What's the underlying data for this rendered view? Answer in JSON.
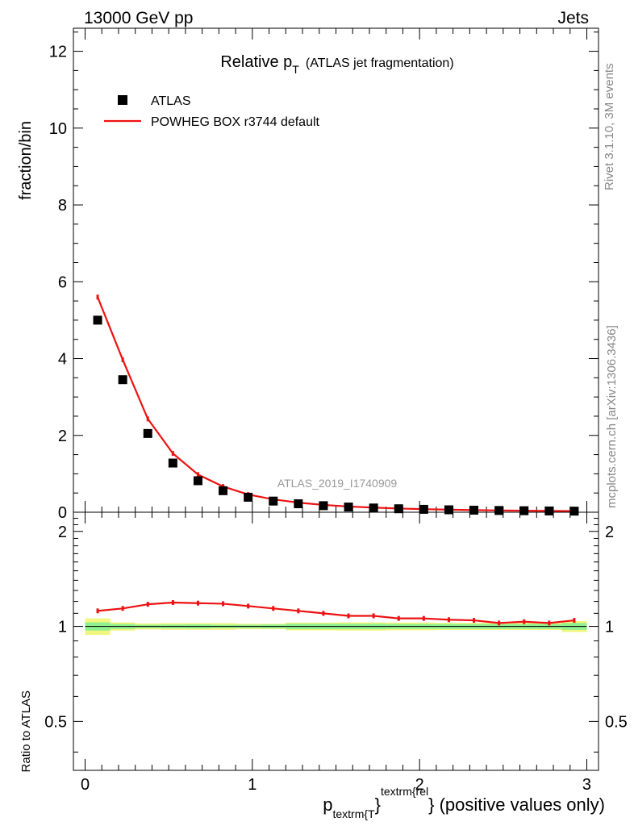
{
  "header": {
    "left": "13000 GeV pp",
    "right": "Jets"
  },
  "title": {
    "main": "Relative p",
    "sub": "T",
    "paren": "(ATLAS jet fragmentation)"
  },
  "side_labels": {
    "rivet": "Rivet 3.1.10,  3M events",
    "mcplots": "mcplots.cern.ch [arXiv:1306.3436]"
  },
  "watermark": "ATLAS_2019_I1740909",
  "legend": {
    "data_label": "ATLAS",
    "mc_label": "POWHEG BOX r3744 default"
  },
  "colors": {
    "mc": "#ee1111",
    "data": "#000000",
    "band_outer": "#f2f57e",
    "band_inner": "#8ff08f"
  },
  "xaxis": {
    "label_p": "p",
    "label_sub": "textrm{T",
    "label_sup": "textrm{rel",
    "label_brace1": "}",
    "label_brace2": "}",
    "label_rest": " (positive values only)"
  },
  "chart_data": [
    {
      "type": "scatter",
      "panel": "main",
      "ylabel": "fraction/bin",
      "xlim": [
        -0.07,
        3.07
      ],
      "ylim": [
        0,
        12.6
      ],
      "yticks": [
        0,
        2,
        4,
        6,
        8,
        10,
        12
      ],
      "ytick_labels": [
        "0",
        "2",
        "4",
        "6",
        "8",
        "10",
        "12"
      ],
      "series": [
        {
          "name": "ATLAS",
          "style": "markers",
          "x": [
            0.075,
            0.225,
            0.375,
            0.525,
            0.675,
            0.825,
            0.975,
            1.125,
            1.275,
            1.425,
            1.575,
            1.725,
            1.875,
            2.025,
            2.175,
            2.325,
            2.475,
            2.625,
            2.775,
            2.925
          ],
          "y": [
            5.0,
            3.45,
            2.05,
            1.28,
            0.82,
            0.56,
            0.39,
            0.29,
            0.22,
            0.17,
            0.135,
            0.11,
            0.09,
            0.075,
            0.063,
            0.053,
            0.045,
            0.039,
            0.033,
            0.028
          ]
        },
        {
          "name": "POWHEG BOX r3744 default",
          "style": "line",
          "x": [
            0.075,
            0.225,
            0.375,
            0.525,
            0.675,
            0.825,
            0.975,
            1.125,
            1.275,
            1.425,
            1.575,
            1.725,
            1.875,
            2.025,
            2.175,
            2.325,
            2.475,
            2.625,
            2.775,
            2.925
          ],
          "y": [
            5.6,
            3.97,
            2.43,
            1.53,
            0.98,
            0.67,
            0.46,
            0.335,
            0.25,
            0.19,
            0.148,
            0.12,
            0.096,
            0.08,
            0.066,
            0.055,
            0.046,
            0.04,
            0.034,
            0.029
          ]
        }
      ]
    },
    {
      "type": "line",
      "panel": "ratio",
      "ylabel": "Ratio to ATLAS",
      "xlabel": "p_textrm{T}^textrm{rel} (positive values only)",
      "xlim": [
        -0.07,
        3.07
      ],
      "ylim": [
        0.35,
        2.3
      ],
      "yticks": [
        0.5,
        1,
        2
      ],
      "ytick_labels": [
        "0.5",
        "1",
        "2"
      ],
      "xticks": [
        0,
        1,
        2,
        3
      ],
      "xtick_labels": [
        "0",
        "1",
        "2",
        "3"
      ],
      "series": [
        {
          "name": "POWHEG BOX r3744 default / ATLAS",
          "x": [
            0.075,
            0.225,
            0.375,
            0.525,
            0.675,
            0.825,
            0.975,
            1.125,
            1.275,
            1.425,
            1.575,
            1.725,
            1.875,
            2.025,
            2.175,
            2.325,
            2.475,
            2.625,
            2.775,
            2.925
          ],
          "y": [
            1.12,
            1.14,
            1.175,
            1.19,
            1.185,
            1.18,
            1.16,
            1.14,
            1.12,
            1.1,
            1.08,
            1.08,
            1.06,
            1.06,
            1.05,
            1.045,
            1.025,
            1.035,
            1.025,
            1.045
          ]
        },
        {
          "name": "ATLAS uncertainty band",
          "x_edges": [
            0.0,
            0.15,
            0.3,
            0.45,
            0.6,
            0.75,
            0.9,
            1.05,
            1.2,
            1.35,
            1.5,
            1.65,
            1.8,
            1.95,
            2.1,
            2.25,
            2.4,
            2.55,
            2.7,
            2.85,
            3.0
          ],
          "inner_halfwidth": [
            0.03,
            0.018,
            0.012,
            0.014,
            0.015,
            0.012,
            0.012,
            0.014,
            0.02,
            0.02,
            0.02,
            0.02,
            0.018,
            0.018,
            0.018,
            0.018,
            0.018,
            0.018,
            0.018,
            0.025
          ],
          "outer_halfwidth": [
            0.06,
            0.03,
            0.022,
            0.024,
            0.024,
            0.024,
            0.02,
            0.02,
            0.028,
            0.028,
            0.03,
            0.03,
            0.028,
            0.028,
            0.026,
            0.026,
            0.026,
            0.026,
            0.026,
            0.04
          ]
        }
      ]
    }
  ]
}
